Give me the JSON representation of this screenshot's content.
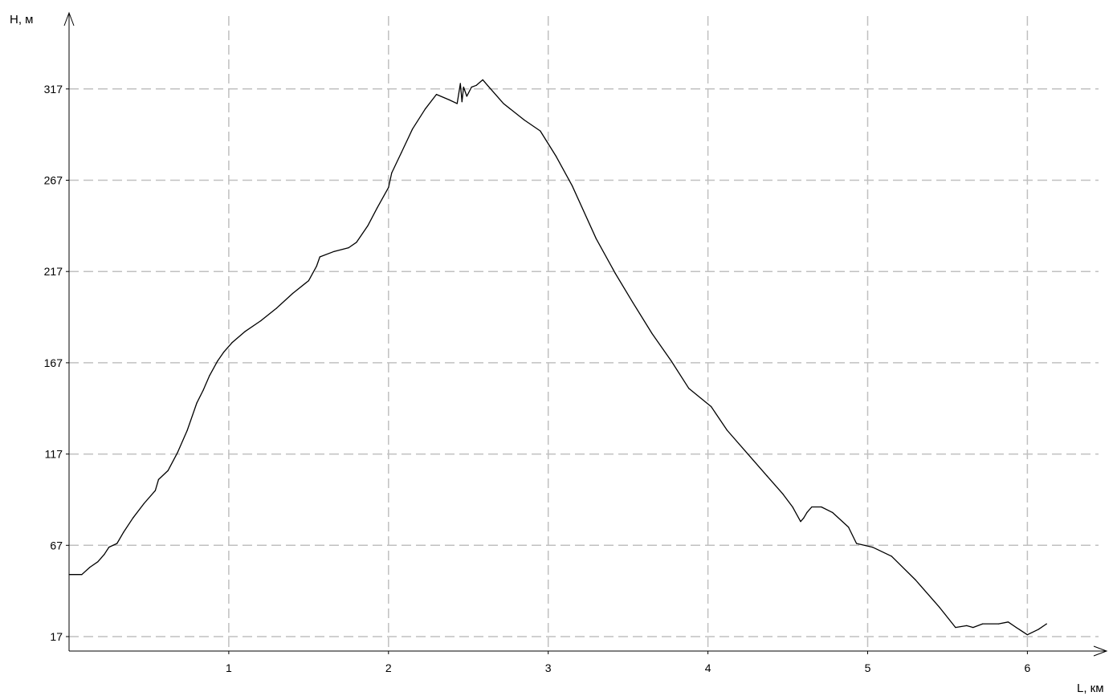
{
  "chart_data": {
    "type": "line",
    "title": "",
    "xlabel": "L, км",
    "ylabel": "H, м",
    "xlim": [
      0,
      6.5
    ],
    "ylim": [
      10,
      340
    ],
    "xticks": [
      1,
      2,
      3,
      4,
      5,
      6
    ],
    "yticks": [
      17,
      67,
      117,
      167,
      217,
      267,
      317
    ],
    "grid": true,
    "legend": "none",
    "colors": {
      "line": "#000000",
      "grid": "#c0c0c0",
      "axis": "#000000",
      "background": "#ffffff"
    },
    "series": [
      {
        "x": [
          0.0,
          0.08,
          0.13,
          0.18,
          0.22,
          0.25,
          0.3,
          0.34,
          0.4,
          0.47,
          0.54,
          0.56,
          0.62,
          0.68,
          0.74,
          0.8,
          0.84,
          0.88,
          0.93,
          0.97,
          1.02,
          1.1,
          1.2,
          1.3,
          1.4,
          1.5,
          1.55,
          1.57,
          1.66,
          1.75,
          1.8,
          1.87,
          1.93,
          2.0,
          2.02,
          2.08,
          2.15,
          2.23,
          2.3,
          2.38,
          2.43,
          2.45,
          2.46,
          2.47,
          2.49,
          2.52,
          2.55,
          2.59,
          2.62,
          2.72,
          2.85,
          2.95,
          3.05,
          3.15,
          3.3,
          3.42,
          3.53,
          3.65,
          3.77,
          3.88,
          4.02,
          4.12,
          4.25,
          4.37,
          4.47,
          4.53,
          4.58,
          4.6,
          4.62,
          4.65,
          4.71,
          4.78,
          4.88,
          4.93,
          5.03,
          5.15,
          5.3,
          5.45,
          5.55,
          5.62,
          5.66,
          5.72,
          5.82,
          5.88,
          5.93,
          6.0,
          6.07,
          6.12
        ],
        "y": [
          51,
          51,
          55,
          58,
          62,
          66,
          68,
          74,
          82,
          90,
          97,
          103,
          108,
          118,
          130,
          145,
          152,
          160,
          168,
          173,
          178,
          184,
          190,
          197,
          205,
          212,
          220,
          225,
          228,
          230,
          233,
          242,
          252,
          263,
          271,
          282,
          295,
          306,
          314,
          311,
          309,
          320,
          310,
          318,
          313,
          318,
          319,
          322,
          319,
          309,
          300,
          294,
          280,
          264,
          235,
          216,
          200,
          183,
          168,
          153,
          143,
          130,
          117,
          105,
          95,
          88,
          80,
          82,
          85,
          88,
          88,
          85,
          77,
          68,
          66,
          61,
          48,
          33,
          22,
          23,
          22,
          24,
          24,
          25,
          22,
          18,
          21,
          24
        ]
      }
    ]
  }
}
